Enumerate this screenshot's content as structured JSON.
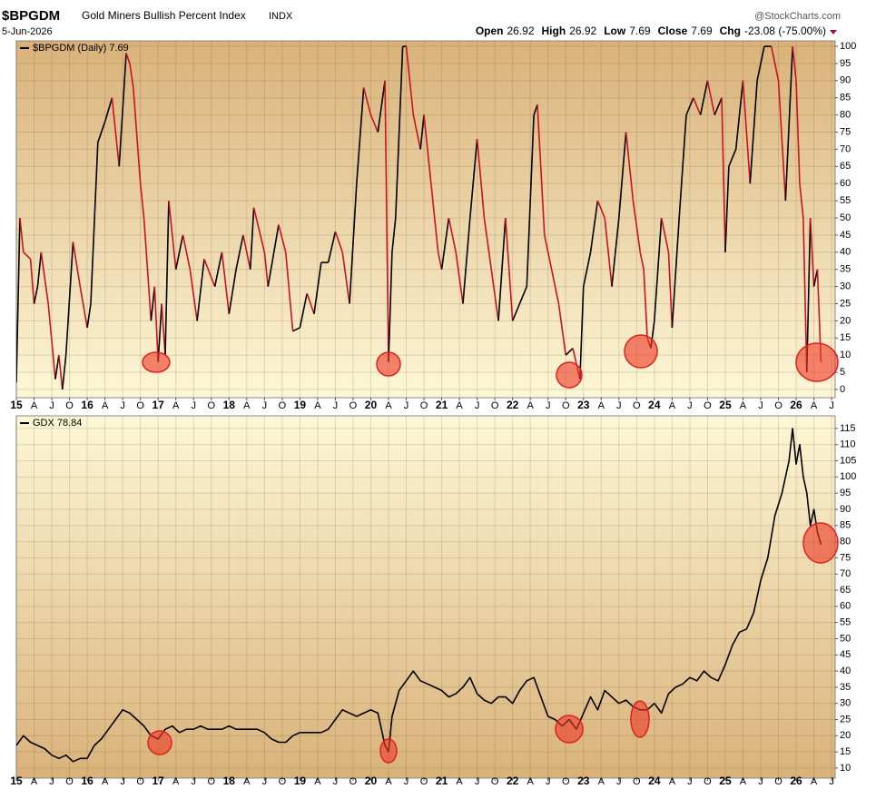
{
  "header": {
    "symbol": "$BPGDM",
    "name": "Gold Miners Bullish Percent Index",
    "exchange": "INDX",
    "date": "5-Jun-2026",
    "source": "@StockCharts.com",
    "quote": [
      {
        "label": "Open",
        "value": "26.92"
      },
      {
        "label": "High",
        "value": "26.92"
      },
      {
        "label": "Low",
        "value": "7.69"
      },
      {
        "label": "Close",
        "value": "7.69"
      },
      {
        "label": "Chg",
        "value": "-23.08 (-75.00%)"
      }
    ]
  },
  "chart_data": [
    {
      "type": "line",
      "xlim": [
        2015,
        2026.55
      ],
      "ylim": [
        -2.4,
        101.6
      ],
      "grid": true,
      "legend": "top-left",
      "yticks": [
        0,
        5,
        10,
        15,
        20,
        25,
        30,
        35,
        40,
        45,
        50,
        55,
        60,
        65,
        70,
        75,
        80,
        85,
        90,
        95,
        100
      ],
      "xticks": [
        {
          "value": 2015,
          "label": "15"
        },
        {
          "value": 2015.25,
          "label": "A"
        },
        {
          "value": 2015.5,
          "label": "J"
        },
        {
          "value": 2015.75,
          "label": "O"
        },
        {
          "value": 2016,
          "label": "16"
        },
        {
          "value": 2016.25,
          "label": "A"
        },
        {
          "value": 2016.5,
          "label": "J"
        },
        {
          "value": 2016.75,
          "label": "O"
        },
        {
          "value": 2017,
          "label": "17"
        },
        {
          "value": 2017.25,
          "label": "A"
        },
        {
          "value": 2017.5,
          "label": "J"
        },
        {
          "value": 2017.75,
          "label": "O"
        },
        {
          "value": 2018,
          "label": "18"
        },
        {
          "value": 2018.25,
          "label": "A"
        },
        {
          "value": 2018.5,
          "label": "J"
        },
        {
          "value": 2018.75,
          "label": "O"
        },
        {
          "value": 2019,
          "label": "19"
        },
        {
          "value": 2019.25,
          "label": "A"
        },
        {
          "value": 2019.5,
          "label": "J"
        },
        {
          "value": 2019.75,
          "label": "O"
        },
        {
          "value": 2020,
          "label": "20"
        },
        {
          "value": 2020.25,
          "label": "A"
        },
        {
          "value": 2020.5,
          "label": "J"
        },
        {
          "value": 2020.75,
          "label": "O"
        },
        {
          "value": 2021,
          "label": "21"
        },
        {
          "value": 2021.25,
          "label": "A"
        },
        {
          "value": 2021.5,
          "label": "J"
        },
        {
          "value": 2021.75,
          "label": "O"
        },
        {
          "value": 2022,
          "label": "22"
        },
        {
          "value": 2022.25,
          "label": "A"
        },
        {
          "value": 2022.5,
          "label": "J"
        },
        {
          "value": 2022.75,
          "label": "O"
        },
        {
          "value": 2023,
          "label": "23"
        },
        {
          "value": 2023.25,
          "label": "A"
        },
        {
          "value": 2023.5,
          "label": "J"
        },
        {
          "value": 2023.75,
          "label": "O"
        },
        {
          "value": 2024,
          "label": "24"
        },
        {
          "value": 2024.25,
          "label": "A"
        },
        {
          "value": 2024.5,
          "label": "J"
        },
        {
          "value": 2024.75,
          "label": "O"
        },
        {
          "value": 2025,
          "label": "25"
        },
        {
          "value": 2025.25,
          "label": "A"
        },
        {
          "value": 2025.5,
          "label": "J"
        },
        {
          "value": 2025.75,
          "label": "O"
        },
        {
          "value": 2026,
          "label": "26"
        },
        {
          "value": 2026.25,
          "label": "A"
        },
        {
          "value": 2026.5,
          "label": "J"
        }
      ],
      "series": [
        {
          "name": "$BPGDM (Daily) 7.69",
          "color": "#000000",
          "down_color": "#cc1122",
          "x": [
            2015.0,
            2015.05,
            2015.1,
            2015.2,
            2015.25,
            2015.3,
            2015.35,
            2015.45,
            2015.55,
            2015.6,
            2015.65,
            2015.7,
            2015.8,
            2015.9,
            2016.0,
            2016.05,
            2016.15,
            2016.25,
            2016.35,
            2016.45,
            2016.55,
            2016.6,
            2016.65,
            2016.75,
            2016.8,
            2016.9,
            2016.95,
            2017.0,
            2017.05,
            2017.1,
            2017.15,
            2017.25,
            2017.35,
            2017.45,
            2017.55,
            2017.65,
            2017.8,
            2017.9,
            2018.0,
            2018.1,
            2018.2,
            2018.3,
            2018.35,
            2018.5,
            2018.55,
            2018.7,
            2018.8,
            2018.9,
            2019.0,
            2019.1,
            2019.2,
            2019.3,
            2019.4,
            2019.5,
            2019.6,
            2019.7,
            2019.8,
            2019.9,
            2020.0,
            2020.1,
            2020.2,
            2020.25,
            2020.3,
            2020.35,
            2020.45,
            2020.5,
            2020.6,
            2020.7,
            2020.75,
            2020.85,
            2020.95,
            2021.0,
            2021.1,
            2021.2,
            2021.3,
            2021.4,
            2021.5,
            2021.6,
            2021.7,
            2021.8,
            2021.9,
            2022.0,
            2022.1,
            2022.2,
            2022.3,
            2022.35,
            2022.45,
            2022.55,
            2022.65,
            2022.75,
            2022.85,
            2022.95,
            2023.0,
            2023.1,
            2023.2,
            2023.3,
            2023.4,
            2023.5,
            2023.6,
            2023.7,
            2023.8,
            2023.85,
            2023.9,
            2023.95,
            2024.0,
            2024.1,
            2024.2,
            2024.25,
            2024.35,
            2024.45,
            2024.55,
            2024.65,
            2024.75,
            2024.85,
            2024.95,
            2025.0,
            2025.05,
            2025.15,
            2025.25,
            2025.35,
            2025.45,
            2025.55,
            2025.65,
            2025.75,
            2025.85,
            2025.95,
            2026.0,
            2026.05,
            2026.1,
            2026.15,
            2026.2,
            2026.25,
            2026.3,
            2026.35
          ],
          "values": [
            2,
            50,
            40,
            38,
            25,
            30,
            40,
            25,
            3,
            10,
            0,
            10,
            43,
            30,
            18,
            25,
            72,
            78,
            85,
            65,
            98,
            95,
            88,
            60,
            50,
            20,
            30,
            8,
            25,
            10,
            55,
            35,
            45,
            35,
            20,
            38,
            30,
            40,
            22,
            35,
            45,
            35,
            53,
            40,
            30,
            48,
            40,
            17,
            18,
            28,
            22,
            37,
            37,
            46,
            40,
            25,
            60,
            88,
            80,
            75,
            90,
            8,
            40,
            50,
            100,
            100,
            80,
            70,
            80,
            60,
            40,
            35,
            50,
            40,
            25,
            50,
            73,
            50,
            35,
            20,
            50,
            20,
            25,
            30,
            80,
            83,
            45,
            35,
            25,
            10,
            12,
            3,
            30,
            40,
            55,
            50,
            30,
            50,
            75,
            55,
            40,
            35,
            15,
            12,
            20,
            50,
            40,
            18,
            50,
            80,
            85,
            80,
            90,
            80,
            85,
            40,
            65,
            70,
            90,
            60,
            90,
            100,
            100,
            90,
            55,
            100,
            90,
            60,
            50,
            5,
            50,
            30,
            35,
            8
          ]
        }
      ]
    },
    {
      "type": "line",
      "xlim": [
        2015,
        2026.55
      ],
      "ylim": [
        6.9,
        118.9
      ],
      "grid": true,
      "legend": "top-left",
      "yticks": [
        10,
        15,
        20,
        25,
        30,
        35,
        40,
        45,
        50,
        55,
        60,
        65,
        70,
        75,
        80,
        85,
        90,
        95,
        100,
        105,
        110,
        115
      ],
      "xticks": [
        {
          "value": 2015,
          "label": "15"
        },
        {
          "value": 2015.25,
          "label": "A"
        },
        {
          "value": 2015.5,
          "label": "J"
        },
        {
          "value": 2015.75,
          "label": "O"
        },
        {
          "value": 2016,
          "label": "16"
        },
        {
          "value": 2016.25,
          "label": "A"
        },
        {
          "value": 2016.5,
          "label": "J"
        },
        {
          "value": 2016.75,
          "label": "O"
        },
        {
          "value": 2017,
          "label": "17"
        },
        {
          "value": 2017.25,
          "label": "A"
        },
        {
          "value": 2017.5,
          "label": "J"
        },
        {
          "value": 2017.75,
          "label": "O"
        },
        {
          "value": 2018,
          "label": "18"
        },
        {
          "value": 2018.25,
          "label": "A"
        },
        {
          "value": 2018.5,
          "label": "J"
        },
        {
          "value": 2018.75,
          "label": "O"
        },
        {
          "value": 2019,
          "label": "19"
        },
        {
          "value": 2019.25,
          "label": "A"
        },
        {
          "value": 2019.5,
          "label": "J"
        },
        {
          "value": 2019.75,
          "label": "O"
        },
        {
          "value": 2020,
          "label": "20"
        },
        {
          "value": 2020.25,
          "label": "A"
        },
        {
          "value": 2020.5,
          "label": "J"
        },
        {
          "value": 2020.75,
          "label": "O"
        },
        {
          "value": 2021,
          "label": "21"
        },
        {
          "value": 2021.25,
          "label": "A"
        },
        {
          "value": 2021.5,
          "label": "J"
        },
        {
          "value": 2021.75,
          "label": "O"
        },
        {
          "value": 2022,
          "label": "22"
        },
        {
          "value": 2022.25,
          "label": "A"
        },
        {
          "value": 2022.5,
          "label": "J"
        },
        {
          "value": 2022.75,
          "label": "O"
        },
        {
          "value": 2023,
          "label": "23"
        },
        {
          "value": 2023.25,
          "label": "A"
        },
        {
          "value": 2023.5,
          "label": "J"
        },
        {
          "value": 2023.75,
          "label": "O"
        },
        {
          "value": 2024,
          "label": "24"
        },
        {
          "value": 2024.25,
          "label": "A"
        },
        {
          "value": 2024.5,
          "label": "J"
        },
        {
          "value": 2024.75,
          "label": "O"
        },
        {
          "value": 2025,
          "label": "25"
        },
        {
          "value": 2025.25,
          "label": "A"
        },
        {
          "value": 2025.5,
          "label": "J"
        },
        {
          "value": 2025.75,
          "label": "O"
        },
        {
          "value": 2026,
          "label": "26"
        },
        {
          "value": 2026.25,
          "label": "A"
        },
        {
          "value": 2026.5,
          "label": "J"
        }
      ],
      "series": [
        {
          "name": "GDX 78.84",
          "color": "#000000",
          "x": [
            2015.0,
            2015.1,
            2015.2,
            2015.3,
            2015.4,
            2015.5,
            2015.6,
            2015.7,
            2015.8,
            2015.9,
            2016.0,
            2016.1,
            2016.2,
            2016.3,
            2016.4,
            2016.5,
            2016.6,
            2016.7,
            2016.8,
            2016.9,
            2017.0,
            2017.1,
            2017.2,
            2017.3,
            2017.4,
            2017.5,
            2017.6,
            2017.7,
            2017.8,
            2017.9,
            2018.0,
            2018.1,
            2018.2,
            2018.3,
            2018.4,
            2018.5,
            2018.6,
            2018.7,
            2018.8,
            2018.9,
            2019.0,
            2019.1,
            2019.2,
            2019.3,
            2019.4,
            2019.5,
            2019.6,
            2019.7,
            2019.8,
            2019.9,
            2020.0,
            2020.1,
            2020.2,
            2020.25,
            2020.3,
            2020.4,
            2020.5,
            2020.6,
            2020.7,
            2020.8,
            2020.9,
            2021.0,
            2021.1,
            2021.2,
            2021.3,
            2021.4,
            2021.5,
            2021.6,
            2021.7,
            2021.8,
            2021.9,
            2022.0,
            2022.1,
            2022.2,
            2022.3,
            2022.4,
            2022.5,
            2022.6,
            2022.7,
            2022.8,
            2022.9,
            2023.0,
            2023.1,
            2023.2,
            2023.3,
            2023.4,
            2023.5,
            2023.6,
            2023.7,
            2023.8,
            2023.9,
            2024.0,
            2024.1,
            2024.2,
            2024.3,
            2024.4,
            2024.5,
            2024.6,
            2024.7,
            2024.8,
            2024.9,
            2025.0,
            2025.1,
            2025.2,
            2025.3,
            2025.4,
            2025.5,
            2025.6,
            2025.7,
            2025.8,
            2025.9,
            2025.95,
            2026.0,
            2026.05,
            2026.1,
            2026.15,
            2026.2,
            2026.25,
            2026.3,
            2026.35
          ],
          "values": [
            17,
            20,
            18,
            17,
            16,
            14,
            13,
            14,
            12,
            13,
            13,
            17,
            19,
            22,
            25,
            28,
            27,
            25,
            23,
            20,
            19,
            22,
            23,
            21,
            22,
            22,
            23,
            22,
            22,
            22,
            23,
            22,
            22,
            22,
            22,
            21,
            19,
            18,
            18,
            20,
            21,
            21,
            21,
            21,
            22,
            25,
            28,
            27,
            26,
            27,
            28,
            27,
            17,
            15,
            26,
            34,
            37,
            40,
            37,
            36,
            35,
            34,
            32,
            33,
            35,
            38,
            33,
            31,
            30,
            32,
            32,
            30,
            34,
            37,
            38,
            32,
            26,
            25,
            23,
            25,
            22,
            27,
            32,
            28,
            34,
            32,
            30,
            31,
            29,
            28,
            28,
            30,
            27,
            33,
            35,
            36,
            38,
            37,
            40,
            38,
            37,
            42,
            48,
            52,
            53,
            58,
            68,
            75,
            88,
            95,
            105,
            115,
            104,
            110,
            100,
            95,
            85,
            90,
            83,
            79
          ]
        }
      ]
    }
  ]
}
